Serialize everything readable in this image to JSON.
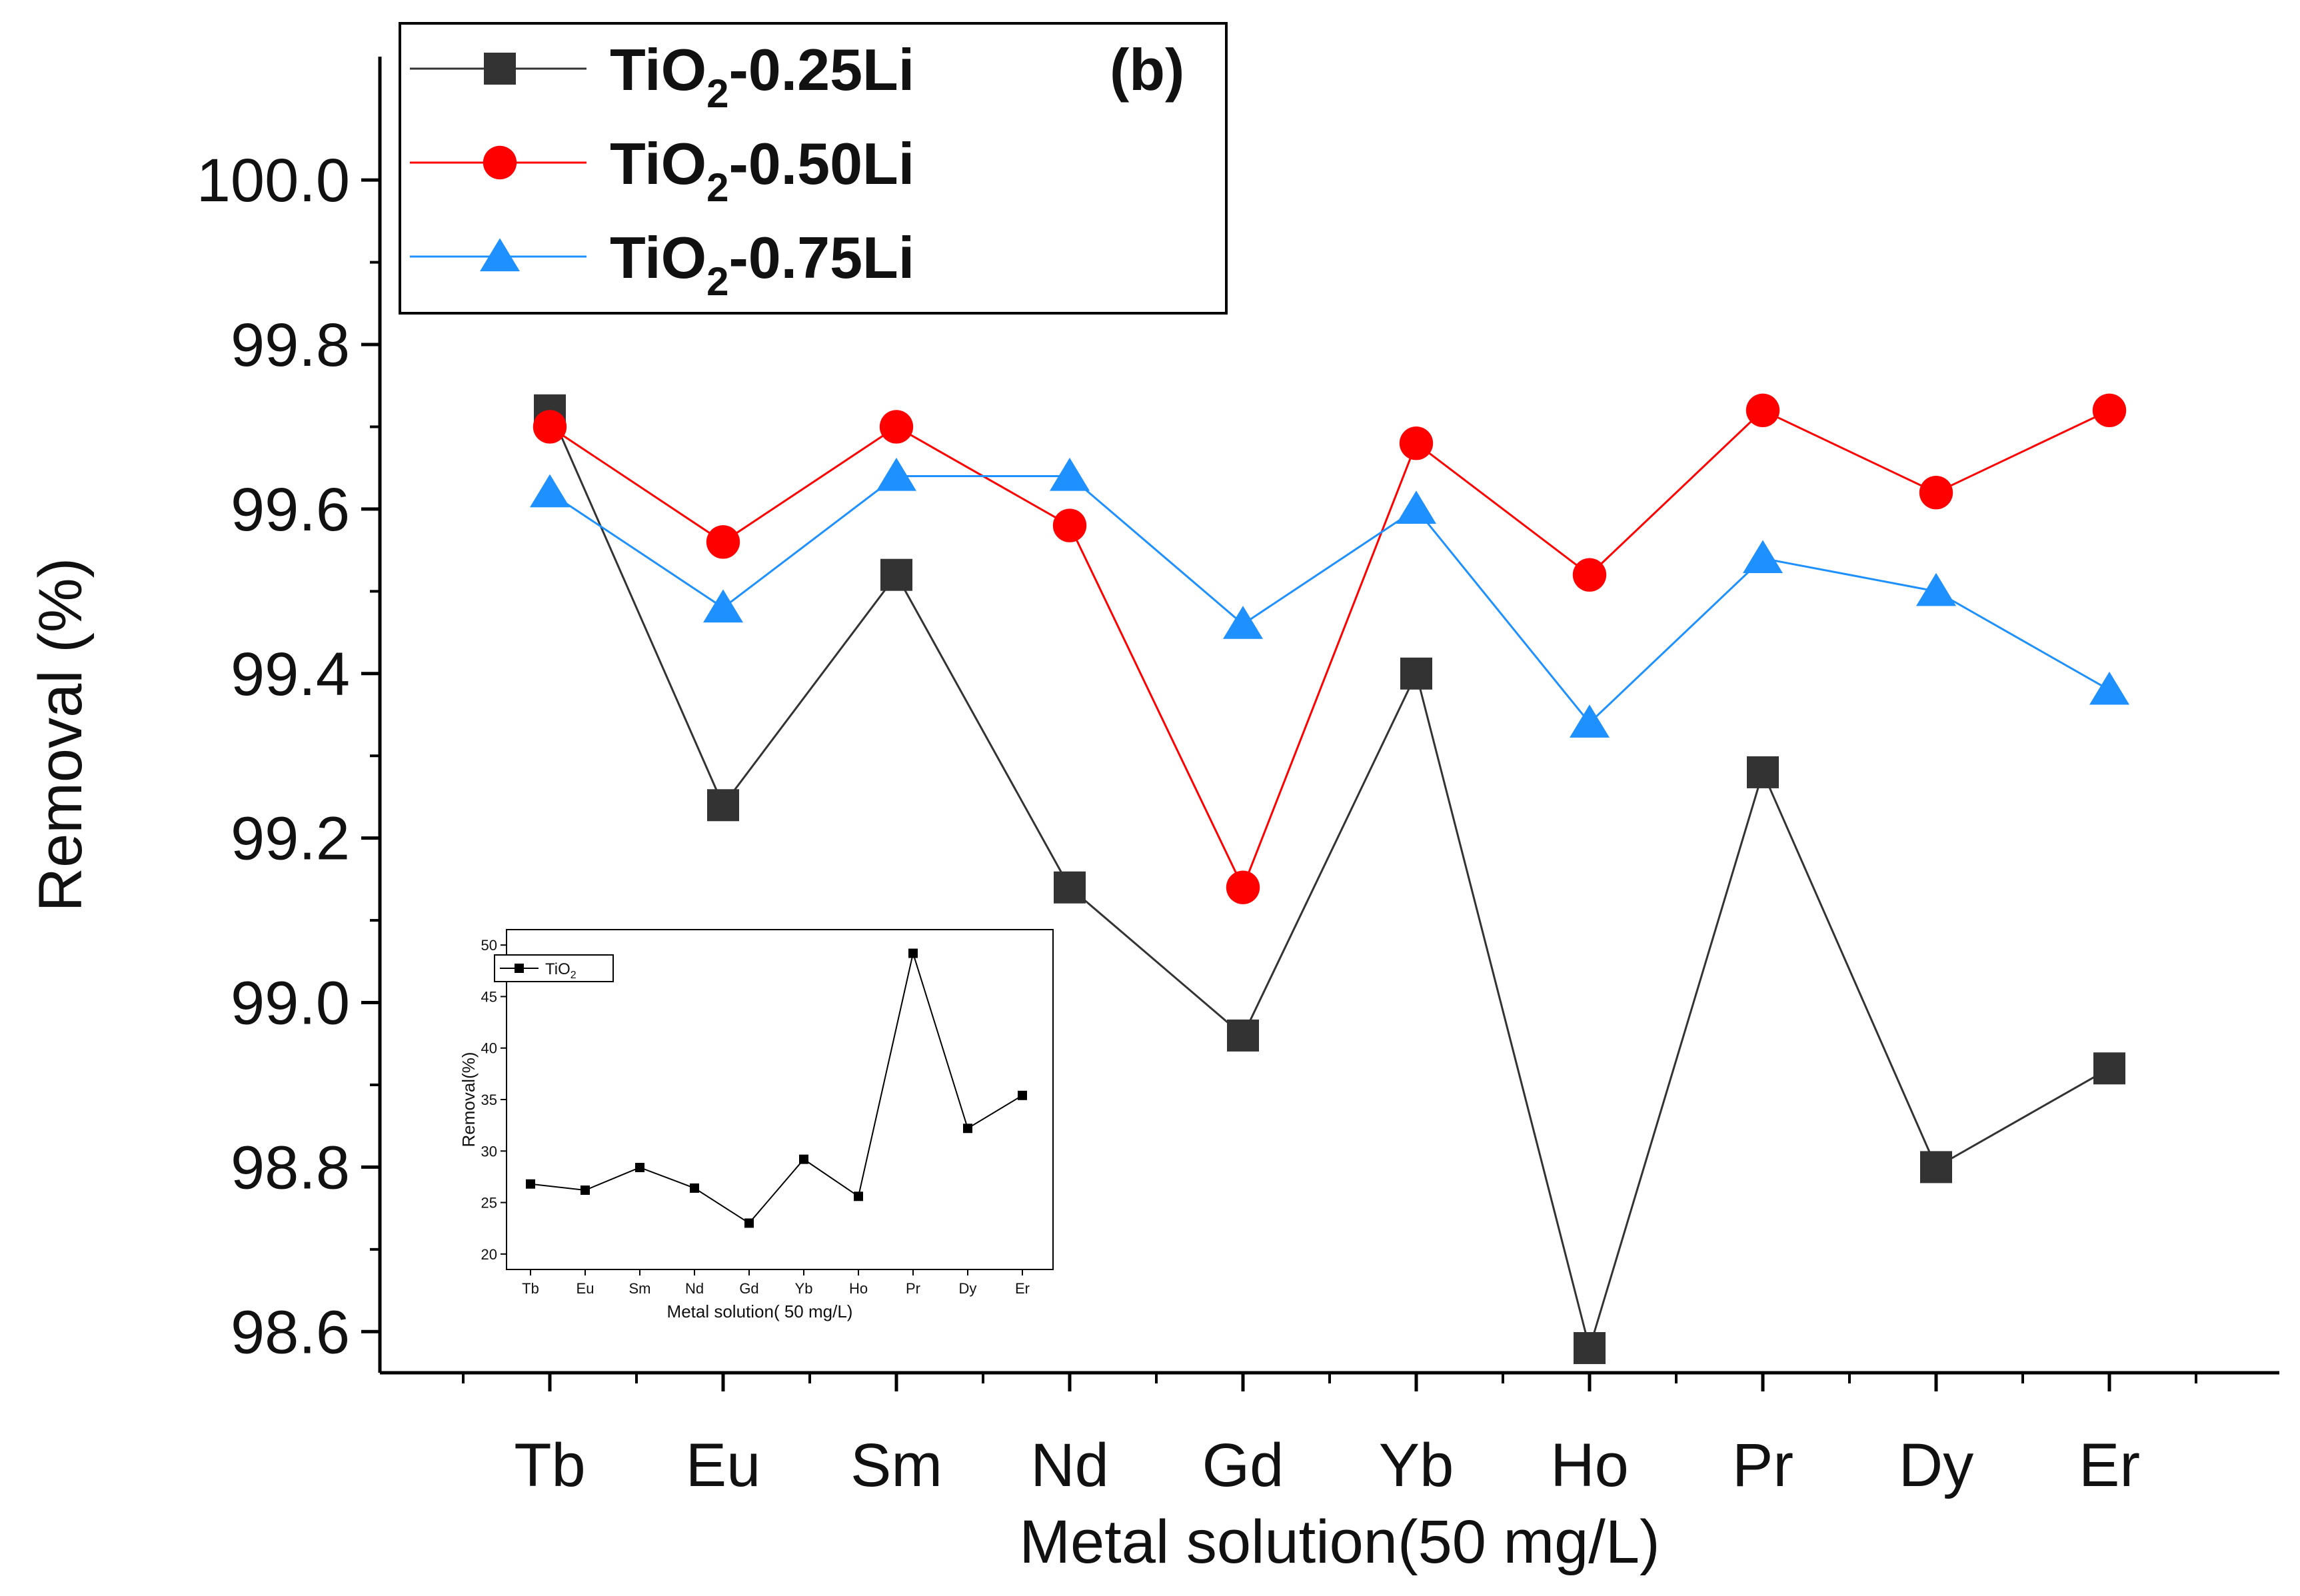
{
  "chart_data": [
    {
      "type": "line",
      "panel_label": "(b)",
      "xlabel": "Metal solution(50 mg/L)",
      "ylabel": "Removal (%)",
      "categories": [
        "Tb",
        "Eu",
        "Sm",
        "Nd",
        "Gd",
        "Yb",
        "Ho",
        "Pr",
        "Dy",
        "Er"
      ],
      "ylim": [
        98.55,
        100.15
      ],
      "yticks": [
        98.6,
        98.8,
        99.0,
        99.2,
        99.4,
        99.6,
        99.8,
        100.0
      ],
      "ytick_labels": [
        "98.6",
        "98.8",
        "99.0",
        "99.2",
        "99.4",
        "99.6",
        "99.8",
        "100.0"
      ],
      "grid": false,
      "legend_position": "top-left",
      "series": [
        {
          "name_main": "TiO",
          "name_sub": "2",
          "name_rest": "-0.25Li",
          "color": "#333333",
          "marker": "square",
          "values": [
            99.72,
            99.24,
            99.52,
            99.14,
            98.96,
            99.4,
            98.58,
            99.28,
            98.8,
            98.92
          ]
        },
        {
          "name_main": "TiO",
          "name_sub": "2",
          "name_rest": "-0.50Li",
          "color": "#ff0000",
          "marker": "circle",
          "values": [
            99.7,
            99.56,
            99.7,
            99.58,
            99.14,
            99.68,
            99.52,
            99.72,
            99.62,
            99.72
          ]
        },
        {
          "name_main": "TiO",
          "name_sub": "2",
          "name_rest": "-0.75Li",
          "color": "#1e90ff",
          "marker": "triangle",
          "values": [
            99.62,
            99.48,
            99.64,
            99.64,
            99.46,
            99.6,
            99.34,
            99.54,
            99.5,
            99.38
          ]
        }
      ]
    },
    {
      "type": "line",
      "role": "inset",
      "xlabel": "Metal solution( 50 mg/L)",
      "ylabel": "Removal(%)",
      "categories": [
        "Tb",
        "Eu",
        "Sm",
        "Nd",
        "Gd",
        "Yb",
        "Ho",
        "Pr",
        "Dy",
        "Er"
      ],
      "ylim": [
        20,
        50
      ],
      "yticks": [
        20,
        25,
        30,
        35,
        40,
        45,
        50
      ],
      "ytick_labels": [
        "20",
        "25",
        "30",
        "35",
        "40",
        "45",
        "50"
      ],
      "legend_position": "top-left",
      "series": [
        {
          "name_main": "TiO",
          "name_sub": "2",
          "color": "#000000",
          "marker": "square",
          "values": [
            26.8,
            26.2,
            28.4,
            26.4,
            23.0,
            29.2,
            25.6,
            49.2,
            32.2,
            35.4
          ]
        }
      ]
    }
  ]
}
